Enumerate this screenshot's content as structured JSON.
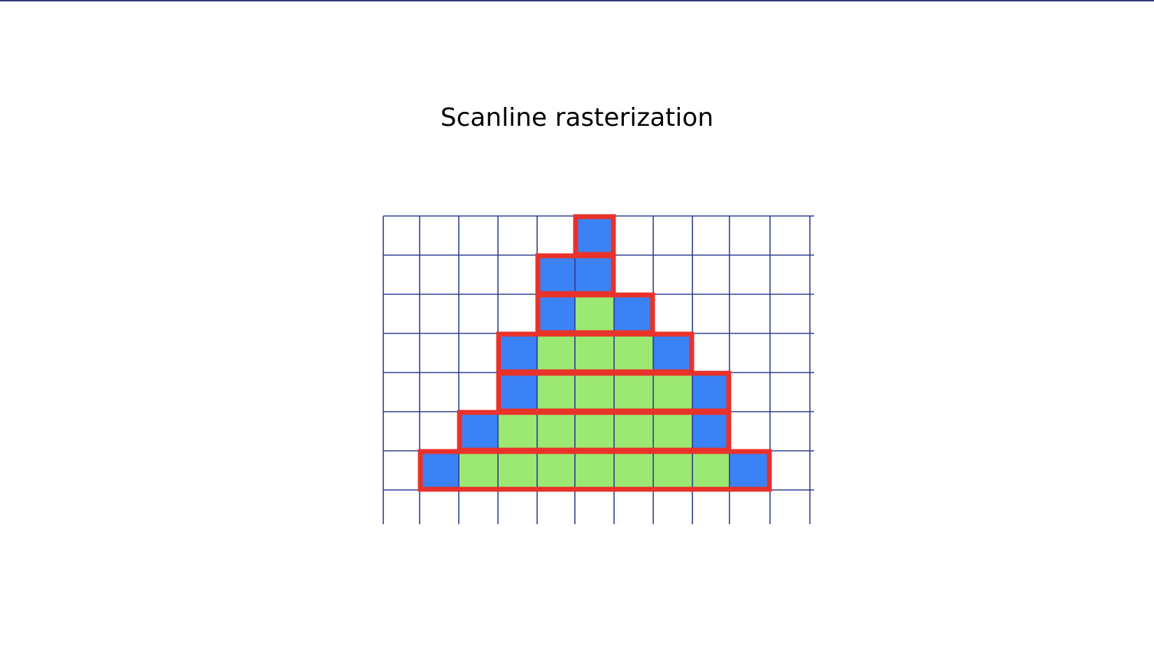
{
  "slide": {
    "title": "Scanline rasterization"
  },
  "colors": {
    "grid_line": "#2b3a8c",
    "span_outline": "#e8322a",
    "edge_pixel": "#3b82f6",
    "interior_pixel": "#9be873",
    "background": "#ffffff",
    "top_rule": "#2b3a7a"
  },
  "grid": {
    "columns": 11,
    "rows": 8
  },
  "scanlines": [
    {
      "row": 0,
      "start_col": 5,
      "end_col": 5,
      "edge_cols": [
        5
      ]
    },
    {
      "row": 1,
      "start_col": 4,
      "end_col": 5,
      "edge_cols": [
        4,
        5
      ]
    },
    {
      "row": 2,
      "start_col": 4,
      "end_col": 6,
      "edge_cols": [
        4,
        6
      ]
    },
    {
      "row": 3,
      "start_col": 3,
      "end_col": 7,
      "edge_cols": [
        3,
        7
      ]
    },
    {
      "row": 4,
      "start_col": 3,
      "end_col": 8,
      "edge_cols": [
        3,
        8
      ]
    },
    {
      "row": 5,
      "start_col": 2,
      "end_col": 8,
      "edge_cols": [
        2,
        8
      ]
    },
    {
      "row": 6,
      "start_col": 1,
      "end_col": 9,
      "edge_cols": [
        1,
        9
      ]
    }
  ]
}
